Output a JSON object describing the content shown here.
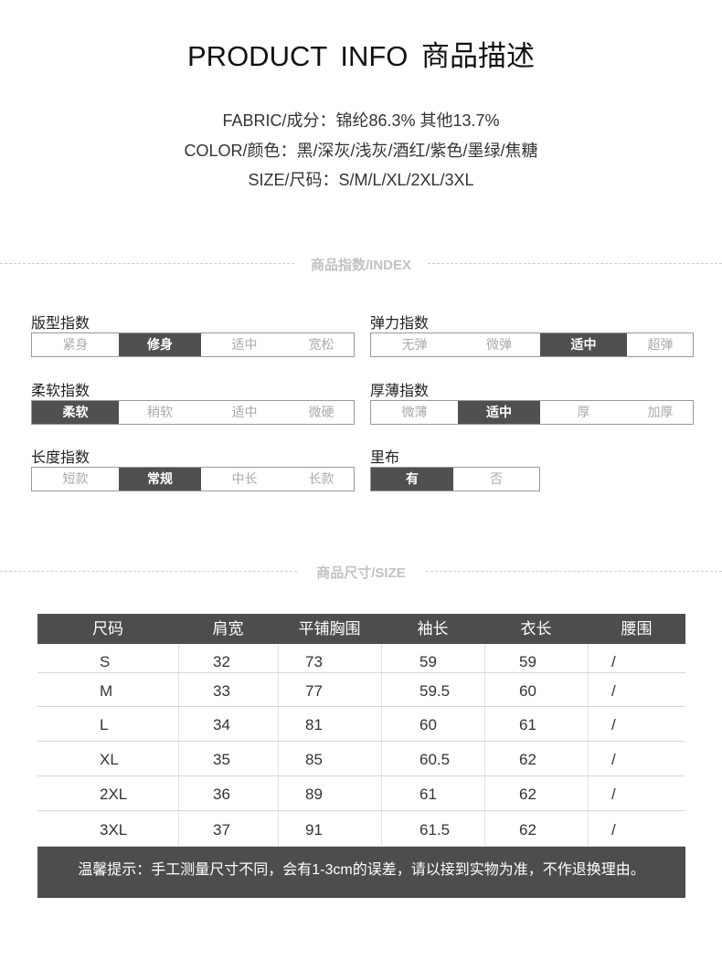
{
  "title": "PRODUCT  INFO 商品描述",
  "info": {
    "fabric": "FABRIC/成分：锦纶86.3%  其他13.7%",
    "color": "COLOR/颜色：黑/深灰/浅灰/酒红/紫色/墨绿/焦糖",
    "size": "SIZE/尺码：S/M/L/XL/2XL/3XL"
  },
  "index_section": "商品指数/INDEX",
  "size_section": "商品尺寸/SIZE",
  "indices": [
    {
      "label": "版型指数",
      "options": [
        "紧身",
        "修身",
        "适中",
        "宽松"
      ],
      "selected": 1
    },
    {
      "label": "弹力指数",
      "options": [
        "无弹",
        "微弹",
        "适中",
        "超弹"
      ],
      "selected": 2
    },
    {
      "label": "柔软指数",
      "options": [
        "柔软",
        "稍软",
        "适中",
        "微硬"
      ],
      "selected": 0
    },
    {
      "label": "厚薄指数",
      "options": [
        "微薄",
        "适中",
        "厚",
        "加厚"
      ],
      "selected": 1
    },
    {
      "label": "长度指数",
      "options": [
        "短款",
        "常规",
        "中长",
        "长款"
      ],
      "selected": 1
    },
    {
      "label": "里布",
      "options": [
        "有",
        "否"
      ],
      "selected": 0
    }
  ],
  "table": {
    "headers": [
      "尺码",
      "肩宽",
      "平铺胸围",
      "袖长",
      "衣长",
      "腰围"
    ],
    "rows": [
      [
        "S",
        "32",
        "73",
        "59",
        "59",
        "/"
      ],
      [
        "M",
        "33",
        "77",
        "59.5",
        "60",
        "/"
      ],
      [
        "L",
        "34",
        "81",
        "60",
        "61",
        "/"
      ],
      [
        "XL",
        "35",
        "85",
        "60.5",
        "62",
        "/"
      ],
      [
        "2XL",
        "36",
        "89",
        "61",
        "62",
        "/"
      ],
      [
        "3XL",
        "37",
        "91",
        "61.5",
        "62",
        "/"
      ]
    ]
  },
  "footer": "温馨提示：手工测量尺寸不同，会有1-3cm的误差，请以接到实物为准，不作退换理由。",
  "colors": {
    "dark": "#4d4d4d",
    "muted": "#aaaaaa"
  }
}
